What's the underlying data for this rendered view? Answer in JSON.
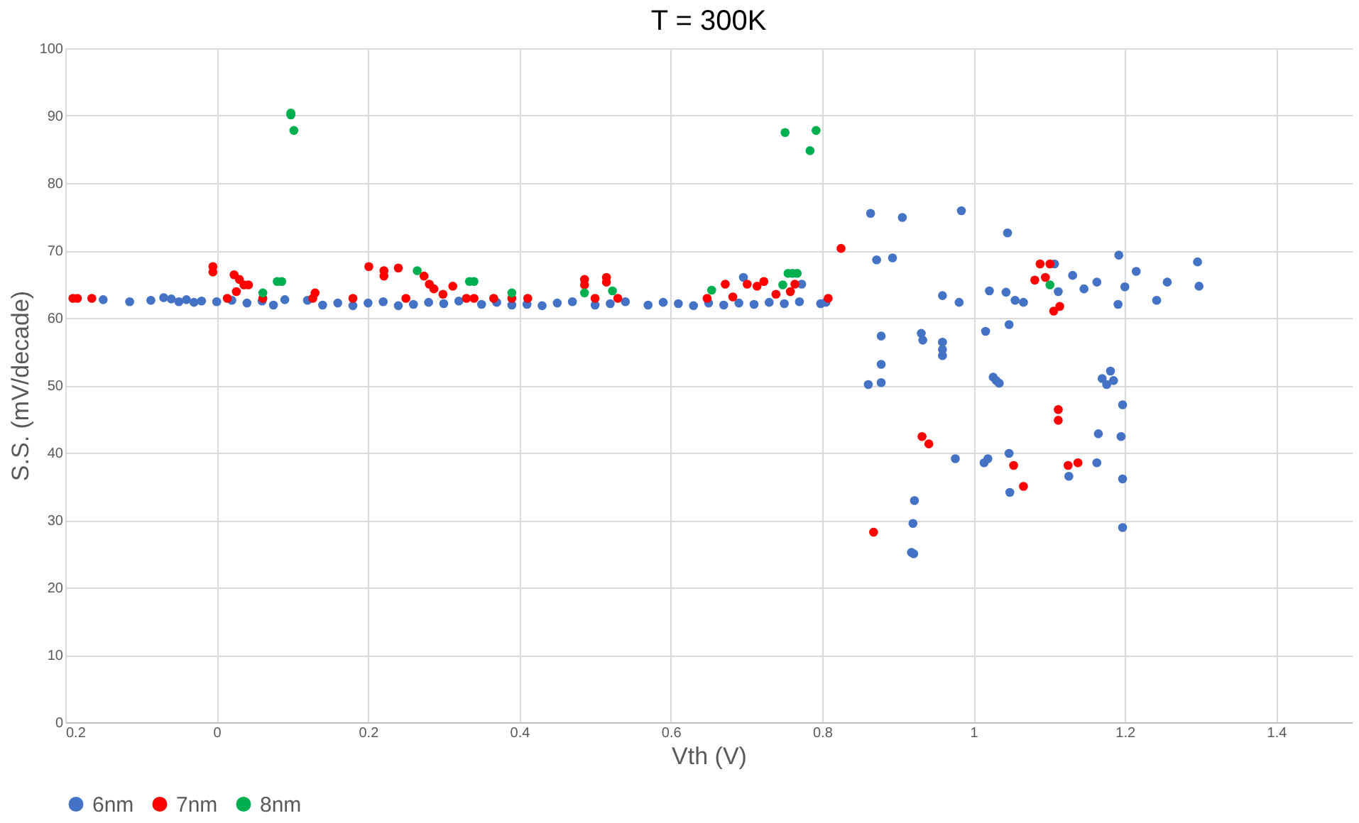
{
  "chart_data": {
    "type": "scatter",
    "title": "T = 300K",
    "xlabel": "Vth (V)",
    "ylabel": "S.S. (mV/decade)",
    "xlim": [
      -0.2,
      1.5
    ],
    "xticks": [
      {
        "value": -0.2,
        "label": "0.2"
      },
      0,
      0.2,
      0.4,
      0.6,
      0.8,
      1,
      1.2,
      1.4
    ],
    "ylim": [
      0,
      100
    ],
    "yticks": [
      0,
      10,
      20,
      30,
      40,
      50,
      60,
      70,
      80,
      90,
      100
    ],
    "grid": true,
    "legend": "bottom",
    "marker": "circle",
    "series": [
      {
        "name": "6nm",
        "color": "#4472c4",
        "x": [
          -0.15,
          -0.115,
          -0.087,
          -0.07,
          -0.06,
          -0.05,
          -0.04,
          -0.03,
          -0.02,
          0,
          0.02,
          0.04,
          0.06,
          0.075,
          0.09,
          0.12,
          0.14,
          0.16,
          0.18,
          0.2,
          0.22,
          0.24,
          0.26,
          0.28,
          0.3,
          0.32,
          0.35,
          0.37,
          0.39,
          0.41,
          0.43,
          0.45,
          0.47,
          0.5,
          0.52,
          0.54,
          0.57,
          0.59,
          0.61,
          0.63,
          0.65,
          0.67,
          0.69,
          0.71,
          0.73,
          0.75,
          0.77,
          0.696,
          0.773,
          0.798,
          0.805,
          0.864,
          0.906,
          0.984,
          1.045,
          0.872,
          0.893,
          1.107,
          1.131,
          1.163,
          1.146,
          1.112,
          1.192,
          1.215,
          1.2,
          1.191,
          1.242,
          1.256,
          0.959,
          0.981,
          1.021,
          1.043,
          1.055,
          1.066,
          1.047,
          1.016,
          0.878,
          0.931,
          0.933,
          0.959,
          0.959,
          0.959,
          0.878,
          0.861,
          0.878,
          1.026,
          1.03,
          1.034,
          1.181,
          1.17,
          1.176,
          1.185,
          1.197,
          1.165,
          1.195,
          0.976,
          1.014,
          1.019,
          1.047,
          1.163,
          1.126,
          1.197,
          1.048,
          0.922,
          0.92,
          1.197,
          0.918,
          0.921,
          1.296,
          1.298
        ],
        "values": [
          62.7,
          62.4,
          62.6,
          63.0,
          62.8,
          62.4,
          62.7,
          62.3,
          62.5,
          62.4,
          62.6,
          62.2,
          62.5,
          61.9,
          62.7,
          62.6,
          61.9,
          62.2,
          61.8,
          62.2,
          62.4,
          61.8,
          62.0,
          62.3,
          62.1,
          62.5,
          62.0,
          62.3,
          61.9,
          62.0,
          61.8,
          62.2,
          62.4,
          61.9,
          62.1,
          62.4,
          61.9,
          62.3,
          62.1,
          61.8,
          62.2,
          61.9,
          62.2,
          62.0,
          62.3,
          62.1,
          62.4,
          66.0,
          65.0,
          62.1,
          62.3,
          75.5,
          74.9,
          75.9,
          72.6,
          68.6,
          68.9,
          68.0,
          66.3,
          65.3,
          64.3,
          63.9,
          69.3,
          66.9,
          64.6,
          62.0,
          62.6,
          65.3,
          63.3,
          62.3,
          64.0,
          63.8,
          62.6,
          62.3,
          59.0,
          58.0,
          57.3,
          57.7,
          56.7,
          56.4,
          55.3,
          54.4,
          53.1,
          50.1,
          50.4,
          51.2,
          50.7,
          50.3,
          52.1,
          51.0,
          50.1,
          50.7,
          47.1,
          42.8,
          42.4,
          39.1,
          38.5,
          39.1,
          39.9,
          38.5,
          36.5,
          36.1,
          34.1,
          32.9,
          29.5,
          28.9,
          25.2,
          25.0,
          68.3,
          64.7
        ]
      },
      {
        "name": "7nm",
        "color": "#ff0000",
        "x": [
          -0.19,
          -0.184,
          -0.165,
          -0.005,
          -0.005,
          0.023,
          0.03,
          0.036,
          0.042,
          0.026,
          0.014,
          0.061,
          0.13,
          0.127,
          0.18,
          0.201,
          0.221,
          0.221,
          0.24,
          0.25,
          0.274,
          0.281,
          0.287,
          0.299,
          0.312,
          0.33,
          0.34,
          0.366,
          0.39,
          0.411,
          0.486,
          0.486,
          0.515,
          0.515,
          0.5,
          0.53,
          0.648,
          0.672,
          0.682,
          0.701,
          0.714,
          0.723,
          0.739,
          0.758,
          0.764,
          0.808,
          0.825,
          1.088,
          1.101,
          1.081,
          1.095,
          1.114,
          1.106,
          1.112,
          1.112,
          0.932,
          0.941,
          1.053,
          1.125,
          1.138,
          1.066,
          0.868
        ],
        "values": [
          62.9,
          62.9,
          62.9,
          67.6,
          66.8,
          66.4,
          65.7,
          64.9,
          64.9,
          63.9,
          62.9,
          62.9,
          63.7,
          62.9,
          62.9,
          67.6,
          67.0,
          66.2,
          67.4,
          62.9,
          66.2,
          65.0,
          64.3,
          63.5,
          64.7,
          62.9,
          62.9,
          62.9,
          62.9,
          62.9,
          65.7,
          64.9,
          66.0,
          65.3,
          62.9,
          62.9,
          62.9,
          65.0,
          63.1,
          65.0,
          64.7,
          65.4,
          63.5,
          63.9,
          65.0,
          62.9,
          70.3,
          68.0,
          68.0,
          65.6,
          66.0,
          61.7,
          61.0,
          46.4,
          44.8,
          42.4,
          41.3,
          38.1,
          38.1,
          38.5,
          35.0,
          28.2
        ]
      },
      {
        "name": "8nm",
        "color": "#00b050",
        "x": [
          0.098,
          0.098,
          0.102,
          0.061,
          0.08,
          0.086,
          0.265,
          0.334,
          0.34,
          0.39,
          0.486,
          0.523,
          0.654,
          0.751,
          0.792,
          0.784,
          0.755,
          0.761,
          0.767,
          0.748,
          1.101
        ],
        "values": [
          90.4,
          90.1,
          87.8,
          63.7,
          65.4,
          65.4,
          67.0,
          65.4,
          65.4,
          63.7,
          63.7,
          64.0,
          64.1,
          87.5,
          87.8,
          84.8,
          66.6,
          66.6,
          66.6,
          64.9,
          64.9
        ]
      }
    ]
  }
}
